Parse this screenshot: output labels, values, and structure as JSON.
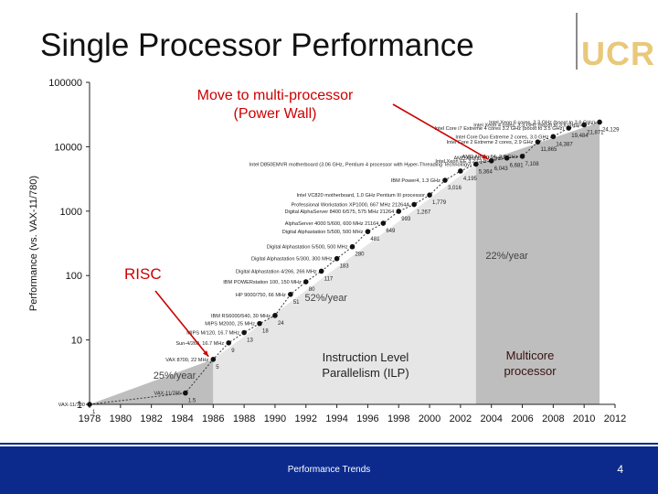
{
  "slide": {
    "title": "Single Processor Performance",
    "logo_text": "UCR",
    "footer": "Performance Trends",
    "page_number": "4"
  },
  "annotations": {
    "multiprocessor_line1": "Move to multi-processor",
    "multiprocessor_line2": "(Power Wall)",
    "risc": "RISC",
    "ilp_line1": "Instruction Level",
    "ilp_line2": "Parallelism (ILP)",
    "multicore_line1": "Multicore",
    "multicore_line2": "processor"
  },
  "colors": {
    "annotation_red": "#cc0000",
    "footer_blue": "#0b2a8c",
    "region_dark": "#bebebe",
    "region_light": "#e6e6e6"
  },
  "chart_data": {
    "type": "scatter",
    "ylabel": "Performance (vs. VAX-11/780)",
    "xlabel": "",
    "xlim": [
      1978,
      2012
    ],
    "ylim": [
      1,
      100000
    ],
    "yscale": "log",
    "x_ticks": [
      1978,
      1980,
      1982,
      1984,
      1986,
      1988,
      1990,
      1992,
      1994,
      1996,
      1998,
      2000,
      2002,
      2004,
      2006,
      2008,
      2010,
      2012
    ],
    "y_ticks": [
      1,
      10,
      100,
      1000,
      10000,
      100000
    ],
    "y_tick_labels": [
      "1",
      "10",
      "100",
      "1000",
      "10000",
      "100000"
    ],
    "growth_rates": [
      {
        "label": "25%/year",
        "x": 1983.5,
        "y": 2.5
      },
      {
        "label": "52%/year",
        "x": 1993.3,
        "y": 40
      },
      {
        "label": "22%/year",
        "x": 2005.0,
        "y": 180
      }
    ],
    "points": [
      {
        "x": 1978,
        "y": 1,
        "value_label": "1",
        "machine": "VAX-11/780"
      },
      {
        "x": 1984.2,
        "y": 1.5,
        "value_label": "1.5",
        "machine": "VAX-11/785"
      },
      {
        "x": 1986,
        "y": 5,
        "value_label": "5",
        "machine": "VAX 8700, 22 MHz"
      },
      {
        "x": 1987,
        "y": 9,
        "value_label": "9",
        "machine": "Sun-4/260, 16.7 MHz"
      },
      {
        "x": 1988,
        "y": 13,
        "value_label": "13",
        "machine": "MIPS M/120, 16.7 MHz"
      },
      {
        "x": 1989,
        "y": 18,
        "value_label": "18",
        "machine": "MIPS M2000, 25 MHz"
      },
      {
        "x": 1990,
        "y": 24,
        "value_label": "24",
        "machine": "IBM RS6000/540, 30 MHz"
      },
      {
        "x": 1991,
        "y": 51,
        "value_label": "51",
        "machine": "HP 9000/750, 66 MHz"
      },
      {
        "x": 1992,
        "y": 80,
        "value_label": "80",
        "machine": "IBM POWERstation 100, 150 MHz"
      },
      {
        "x": 1993,
        "y": 117,
        "value_label": "117",
        "machine": "Digital Alphastation 4/266, 266 MHz"
      },
      {
        "x": 1994,
        "y": 183,
        "value_label": "183",
        "machine": "Digital Alphastation 5/300, 300 MHz"
      },
      {
        "x": 1995,
        "y": 280,
        "value_label": "280",
        "machine": "Digital Alphastation 5/500, 500 MHz"
      },
      {
        "x": 1996,
        "y": 481,
        "value_label": "481",
        "machine": "Digital Alphastation 5/500, 500 MHz"
      },
      {
        "x": 1997,
        "y": 649,
        "value_label": "649",
        "machine": "AlphaServer 4000 5/600, 600 MHz 21164"
      },
      {
        "x": 1998,
        "y": 993,
        "value_label": "993",
        "machine": "Digital AlphaServer 8400 6/575, 575 MHz 21264"
      },
      {
        "x": 1999,
        "y": 1267,
        "value_label": "1,267",
        "machine": "Professional Workstation XP1000, 667 MHz 21264A"
      },
      {
        "x": 2000,
        "y": 1779,
        "value_label": "1,779",
        "machine": "Intel VC820 motherboard, 1.0 GHz Pentium III processor"
      },
      {
        "x": 2001,
        "y": 3016,
        "value_label": "3,016",
        "machine": "IBM Power4, 1.3 GHz"
      },
      {
        "x": 2002,
        "y": 4195,
        "value_label": "4,195",
        "machine": ""
      },
      {
        "x": 2003,
        "y": 5364,
        "value_label": "5,364",
        "machine": "Intel D850EMVR motherboard (3.06 GHz, Pentium 4 processor with Hyper-Threading Technology)"
      },
      {
        "x": 2004,
        "y": 6043,
        "value_label": "6,043",
        "machine": "Intel Xeon EE 3.2 GHz"
      },
      {
        "x": 2005,
        "y": 6681,
        "value_label": "6,681",
        "machine": "AMD Athlon, 2.6 GHz"
      },
      {
        "x": 2006,
        "y": 7108,
        "value_label": "7,108",
        "machine": "AMD Athlon 64, 2.8 GHz"
      },
      {
        "x": 2007,
        "y": 11865,
        "value_label": "11,865",
        "machine": "Intel Core 2 Extreme 2 cores, 2.9 GHz"
      },
      {
        "x": 2008,
        "y": 14387,
        "value_label": "14,387",
        "machine": "Intel Core Duo Extreme 2 cores, 3.0 GHz"
      },
      {
        "x": 2009,
        "y": 19484,
        "value_label": "19,484",
        "machine": "Intel Core i7 Extreme 4 cores 3.2 GHz (boost to 3.5 GHz)"
      },
      {
        "x": 2010,
        "y": 21871,
        "value_label": "21,871",
        "machine": "Intel Xeon 4 cores, 3.3 GHz (boost to 3.6 GHz)"
      },
      {
        "x": 2011,
        "y": 24129,
        "value_label": "24,129",
        "machine": "Intel Xeon 6 cores, 3.3 GHz (boost to 3.6 GHz)"
      }
    ]
  }
}
